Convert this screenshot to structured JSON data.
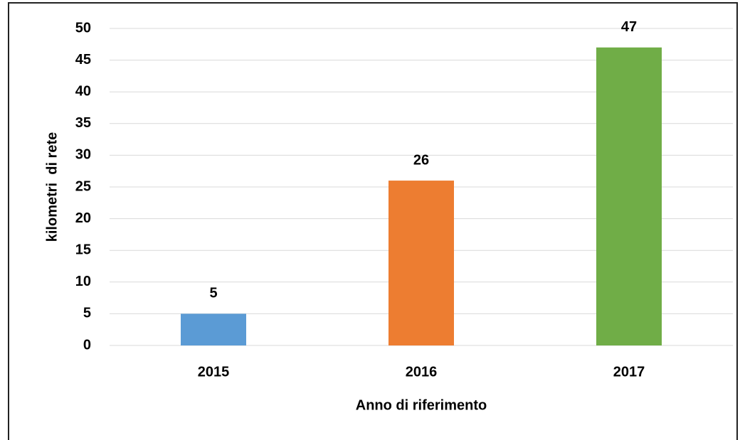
{
  "chart_data": {
    "type": "bar",
    "x_label": "Anno di riferimento",
    "y_label": "kilometri  di rete",
    "categories": [
      "2015",
      "2016",
      "2017"
    ],
    "values": [
      5,
      26,
      47
    ],
    "colors": [
      "#5b9bd5",
      "#ed7d31",
      "#70ad47"
    ],
    "ylim": [
      0,
      50
    ],
    "yticks": [
      0,
      5,
      10,
      15,
      20,
      25,
      30,
      35,
      40,
      45,
      50
    ],
    "grid": true
  }
}
